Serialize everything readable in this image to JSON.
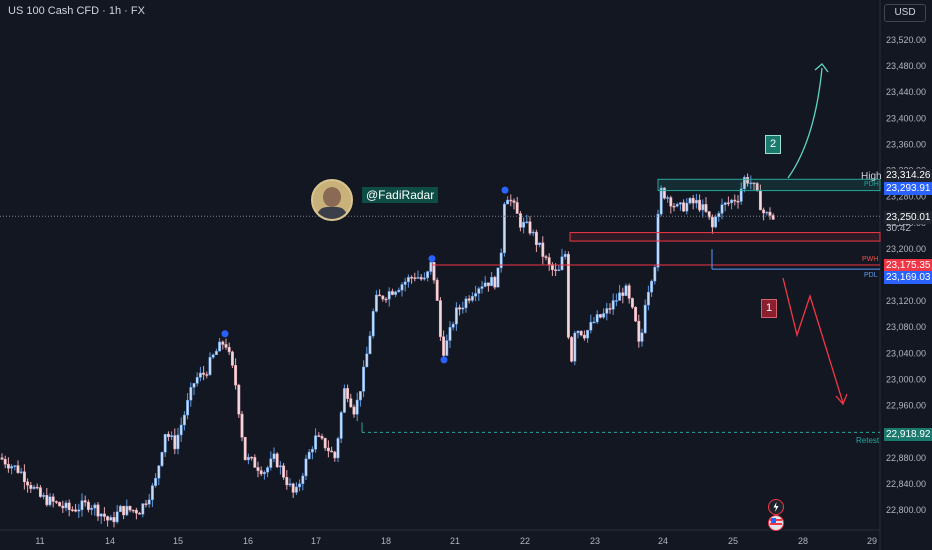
{
  "header": {
    "title": "US 100 Cash CFD · 1h · FX",
    "currency": "USD"
  },
  "author": {
    "handle": "@FadiRadar"
  },
  "annotations": {
    "target_up": "2",
    "target_down": "1"
  },
  "levels": {
    "high": {
      "tag": "High",
      "price": "23,314.26"
    },
    "pdh": {
      "tag": "PDH",
      "price": "23,293.91"
    },
    "current": {
      "price": "23,250.01",
      "countdown": "30:42"
    },
    "pwh": {
      "tag": "PWH",
      "price": "23,175.35"
    },
    "pdl": {
      "tag": "PDL",
      "price": "23,169.03"
    },
    "retest": {
      "tag": "Retest",
      "price": "22,918.92"
    }
  },
  "colors": {
    "up": "#c6dcf6",
    "up_border": "#5f99e3",
    "down": "#f5d7db",
    "accent_teal": "#26a69a",
    "accent_red": "#c62f44",
    "blue": "#2962ff"
  },
  "chart_data": {
    "type": "candlestick",
    "title": "US 100 Cash CFD · 1h · FX",
    "ylim": [
      22770,
      23560
    ],
    "y_ticks": [
      22800,
      22840,
      22880,
      22920,
      22960,
      23000,
      23040,
      23080,
      23120,
      23160,
      23200,
      23240,
      23280,
      23320,
      23360,
      23400,
      23440,
      23480,
      23520
    ],
    "y_tick_labels": [
      "22,800.00",
      "22,840.00",
      "22,880.00",
      "22,920.00",
      "22,960.00",
      "23,000.00",
      "23,040.00",
      "23,080.00",
      "23,120.00",
      "23,160.00",
      "23,200.00",
      "23,240.00",
      "23,280.00",
      "23,320.00",
      "23,360.00",
      "23,400.00",
      "23,440.00",
      "23,480.00",
      "23,520.00"
    ],
    "x_tick_labels": [
      "11",
      "14",
      "15",
      "16",
      "17",
      "18",
      "21",
      "22",
      "23",
      "24",
      "25",
      "28",
      "29"
    ],
    "path": [
      [
        0,
        22880
      ],
      [
        20,
        22860
      ],
      [
        40,
        22820
      ],
      [
        55,
        22810
      ],
      [
        70,
        22800
      ],
      [
        90,
        22810
      ],
      [
        105,
        22790
      ],
      [
        110,
        22780
      ],
      [
        120,
        22800
      ],
      [
        140,
        22800
      ],
      [
        155,
        22840
      ],
      [
        165,
        22920
      ],
      [
        175,
        22900
      ],
      [
        185,
        22950
      ],
      [
        195,
        23000
      ],
      [
        205,
        23010
      ],
      [
        215,
        23040
      ],
      [
        225,
        23060
      ],
      [
        235,
        23000
      ],
      [
        245,
        22880
      ],
      [
        255,
        22870
      ],
      [
        265,
        22860
      ],
      [
        275,
        22880
      ],
      [
        285,
        22850
      ],
      [
        295,
        22820
      ],
      [
        305,
        22870
      ],
      [
        315,
        22910
      ],
      [
        325,
        22900
      ],
      [
        335,
        22880
      ],
      [
        345,
        22990
      ],
      [
        355,
        22950
      ],
      [
        365,
        23020
      ],
      [
        375,
        23120
      ],
      [
        385,
        23130
      ],
      [
        395,
        23140
      ],
      [
        405,
        23150
      ],
      [
        415,
        23160
      ],
      [
        425,
        23150
      ],
      [
        432,
        23180
      ],
      [
        437,
        23120
      ],
      [
        442,
        23040
      ],
      [
        448,
        23060
      ],
      [
        455,
        23100
      ],
      [
        465,
        23120
      ],
      [
        475,
        23140
      ],
      [
        485,
        23150
      ],
      [
        495,
        23150
      ],
      [
        500,
        23170
      ],
      [
        505,
        23290
      ],
      [
        515,
        23260
      ],
      [
        520,
        23240
      ],
      [
        530,
        23230
      ],
      [
        540,
        23200
      ],
      [
        550,
        23170
      ],
      [
        558,
        23160
      ],
      [
        565,
        23200
      ],
      [
        570,
        23010
      ],
      [
        575,
        23080
      ],
      [
        585,
        23070
      ],
      [
        595,
        23090
      ],
      [
        605,
        23100
      ],
      [
        615,
        23120
      ],
      [
        625,
        23140
      ],
      [
        635,
        23090
      ],
      [
        640,
        23040
      ],
      [
        645,
        23120
      ],
      [
        655,
        23180
      ],
      [
        660,
        23290
      ],
      [
        668,
        23280
      ],
      [
        678,
        23260
      ],
      [
        688,
        23270
      ],
      [
        698,
        23270
      ],
      [
        708,
        23250
      ],
      [
        712,
        23230
      ],
      [
        718,
        23260
      ],
      [
        728,
        23270
      ],
      [
        738,
        23280
      ],
      [
        745,
        23310
      ],
      [
        752,
        23300
      ],
      [
        760,
        23270
      ],
      [
        765,
        23250
      ],
      [
        770,
        23255
      ],
      [
        775,
        23240
      ]
    ],
    "swing_points": [
      {
        "label": "swing-high-15",
        "x_day": "15",
        "price": 23070
      },
      {
        "label": "swing-high-18",
        "x_day": "18",
        "price": 23185
      },
      {
        "label": "swing-low-21",
        "x_day": "21",
        "price": 23030
      },
      {
        "label": "swing-high-21",
        "x_day": "21",
        "price": 23290
      }
    ],
    "levels_y": {
      "high": 23314.26,
      "pdh": 23293.91,
      "current": 23250.01,
      "pwh": 23175.35,
      "pdl": 23169.03,
      "retest": 22918.92,
      "zone_top": 23225,
      "zone_bottom": 23212
    },
    "grid": false,
    "legend": "none"
  }
}
